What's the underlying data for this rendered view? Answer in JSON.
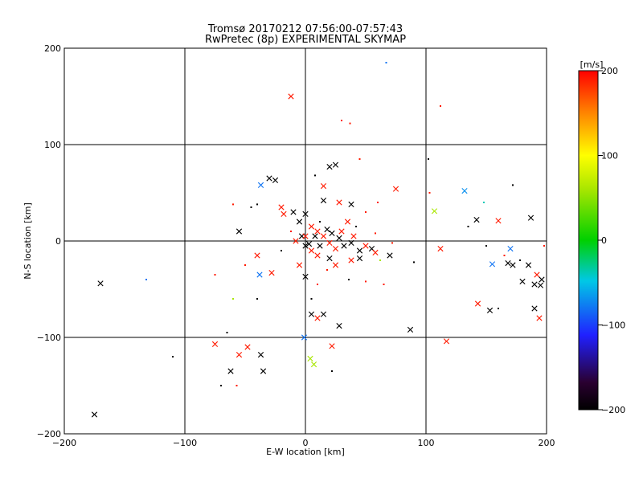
{
  "chart_data": {
    "type": "scatter",
    "title": "Tromsø 20170212 07:56:00-07:57:43",
    "subtitle": "RwPretec (8p) EXPERIMENTAL SKYMAP",
    "xlabel": "E-W location [km]",
    "ylabel": "N-S location [km]",
    "xlim": [
      -200,
      200
    ],
    "ylim": [
      -200,
      200
    ],
    "xticks": [
      -200,
      -100,
      0,
      100,
      200
    ],
    "yticks": [
      -200,
      -100,
      0,
      100,
      200
    ],
    "grid": true,
    "colorbar": {
      "label": "[m/s]",
      "range": [
        -200,
        200
      ],
      "ticks": [
        200,
        100,
        0,
        -100,
        -200
      ]
    },
    "series": [
      {
        "name": "large-markers",
        "marker": "x",
        "points": [
          {
            "x": -12,
            "y": 150,
            "v": 190
          },
          {
            "x": -30,
            "y": 65,
            "v": -200
          },
          {
            "x": -25,
            "y": 63,
            "v": -200
          },
          {
            "x": -37,
            "y": 58,
            "v": -80
          },
          {
            "x": 20,
            "y": 77,
            "v": -200
          },
          {
            "x": 25,
            "y": 79,
            "v": -200
          },
          {
            "x": 15,
            "y": 57,
            "v": 190
          },
          {
            "x": 75,
            "y": 54,
            "v": 190
          },
          {
            "x": 132,
            "y": 52,
            "v": -70
          },
          {
            "x": 107,
            "y": 31,
            "v": 60
          },
          {
            "x": -55,
            "y": 10,
            "v": -200
          },
          {
            "x": -20,
            "y": 35,
            "v": 190
          },
          {
            "x": -18,
            "y": 28,
            "v": 190
          },
          {
            "x": -10,
            "y": 30,
            "v": -200
          },
          {
            "x": -5,
            "y": 20,
            "v": -200
          },
          {
            "x": 0,
            "y": 28,
            "v": -200
          },
          {
            "x": 5,
            "y": 15,
            "v": 190
          },
          {
            "x": 8,
            "y": 5,
            "v": -200
          },
          {
            "x": 10,
            "y": 10,
            "v": 190
          },
          {
            "x": 12,
            "y": -5,
            "v": -200
          },
          {
            "x": 15,
            "y": 5,
            "v": 190
          },
          {
            "x": 18,
            "y": 12,
            "v": -200
          },
          {
            "x": 20,
            "y": -2,
            "v": 190
          },
          {
            "x": 22,
            "y": 8,
            "v": -200
          },
          {
            "x": 25,
            "y": -8,
            "v": 190
          },
          {
            "x": 28,
            "y": 3,
            "v": -200
          },
          {
            "x": 30,
            "y": 10,
            "v": 190
          },
          {
            "x": 32,
            "y": -5,
            "v": -200
          },
          {
            "x": 35,
            "y": 20,
            "v": 190
          },
          {
            "x": 38,
            "y": -2,
            "v": -200
          },
          {
            "x": 40,
            "y": 5,
            "v": 190
          },
          {
            "x": 45,
            "y": -10,
            "v": -200
          },
          {
            "x": 50,
            "y": -5,
            "v": 190
          },
          {
            "x": 55,
            "y": -8,
            "v": -200
          },
          {
            "x": 15,
            "y": 42,
            "v": -200
          },
          {
            "x": 28,
            "y": 40,
            "v": 190
          },
          {
            "x": 38,
            "y": 38,
            "v": -200
          },
          {
            "x": 5,
            "y": -10,
            "v": 190
          },
          {
            "x": 0,
            "y": -5,
            "v": -200
          },
          {
            "x": -5,
            "y": -25,
            "v": 190
          },
          {
            "x": -3,
            "y": 5,
            "v": -200
          },
          {
            "x": -8,
            "y": 0,
            "v": 190
          },
          {
            "x": 0,
            "y": 5,
            "v": 190
          },
          {
            "x": 3,
            "y": -3,
            "v": -200
          },
          {
            "x": 10,
            "y": -15,
            "v": 190
          },
          {
            "x": 20,
            "y": -18,
            "v": -200
          },
          {
            "x": 25,
            "y": -25,
            "v": 190
          },
          {
            "x": 38,
            "y": -20,
            "v": 190
          },
          {
            "x": 45,
            "y": -18,
            "v": -200
          },
          {
            "x": 58,
            "y": -12,
            "v": 190
          },
          {
            "x": 70,
            "y": -15,
            "v": -200
          },
          {
            "x": -40,
            "y": -15,
            "v": 190
          },
          {
            "x": -38,
            "y": -35,
            "v": -80
          },
          {
            "x": -28,
            "y": -33,
            "v": 190
          },
          {
            "x": 0,
            "y": -37,
            "v": -200
          },
          {
            "x": -170,
            "y": -44,
            "v": -200
          },
          {
            "x": 112,
            "y": -8,
            "v": 190
          },
          {
            "x": 142,
            "y": 22,
            "v": -200
          },
          {
            "x": 160,
            "y": 21,
            "v": 190
          },
          {
            "x": 187,
            "y": 24,
            "v": -200
          },
          {
            "x": 155,
            "y": -24,
            "v": -80
          },
          {
            "x": 170,
            "y": -8,
            "v": -80
          },
          {
            "x": 168,
            "y": -23,
            "v": -200
          },
          {
            "x": 172,
            "y": -25,
            "v": -200
          },
          {
            "x": 180,
            "y": -42,
            "v": -200
          },
          {
            "x": 185,
            "y": -25,
            "v": -200
          },
          {
            "x": 192,
            "y": -35,
            "v": 190
          },
          {
            "x": 196,
            "y": -40,
            "v": -200
          },
          {
            "x": 195,
            "y": -46,
            "v": -200
          },
          {
            "x": 190,
            "y": -45,
            "v": -200
          },
          {
            "x": 143,
            "y": -65,
            "v": 190
          },
          {
            "x": 153,
            "y": -72,
            "v": -200
          },
          {
            "x": 190,
            "y": -70,
            "v": -200
          },
          {
            "x": 194,
            "y": -80,
            "v": 190
          },
          {
            "x": 87,
            "y": -92,
            "v": -200
          },
          {
            "x": 117,
            "y": -104,
            "v": 190
          },
          {
            "x": 28,
            "y": -88,
            "v": -200
          },
          {
            "x": 15,
            "y": -76,
            "v": -200
          },
          {
            "x": 10,
            "y": -80,
            "v": 190
          },
          {
            "x": 5,
            "y": -76,
            "v": -200
          },
          {
            "x": -1,
            "y": -100,
            "v": -80
          },
          {
            "x": 4,
            "y": -122,
            "v": 60
          },
          {
            "x": 7,
            "y": -128,
            "v": 60
          },
          {
            "x": 22,
            "y": -109,
            "v": 190
          },
          {
            "x": -75,
            "y": -107,
            "v": 190
          },
          {
            "x": -48,
            "y": -110,
            "v": 190
          },
          {
            "x": -55,
            "y": -118,
            "v": 190
          },
          {
            "x": -37,
            "y": -118,
            "v": -200
          },
          {
            "x": -35,
            "y": -135,
            "v": -200
          },
          {
            "x": -62,
            "y": -135,
            "v": -200
          },
          {
            "x": -175,
            "y": -180,
            "v": -200
          }
        ]
      },
      {
        "name": "small-markers",
        "marker": "dot",
        "points": [
          {
            "x": 67,
            "y": 185,
            "v": -80
          },
          {
            "x": 112,
            "y": 140,
            "v": 190
          },
          {
            "x": 30,
            "y": 125,
            "v": 190
          },
          {
            "x": 37,
            "y": 122,
            "v": 190
          },
          {
            "x": 102,
            "y": 85,
            "v": -200
          },
          {
            "x": 45,
            "y": 85,
            "v": 190
          },
          {
            "x": 8,
            "y": 68,
            "v": -200
          },
          {
            "x": 103,
            "y": 50,
            "v": 190
          },
          {
            "x": 148,
            "y": 40,
            "v": -40
          },
          {
            "x": 172,
            "y": 58,
            "v": -200
          },
          {
            "x": -60,
            "y": 38,
            "v": 190
          },
          {
            "x": -45,
            "y": 35,
            "v": -200
          },
          {
            "x": -40,
            "y": 38,
            "v": -200
          },
          {
            "x": 60,
            "y": 40,
            "v": 190
          },
          {
            "x": 58,
            "y": 8,
            "v": 190
          },
          {
            "x": 72,
            "y": -2,
            "v": 190
          },
          {
            "x": -50,
            "y": -25,
            "v": 190
          },
          {
            "x": -75,
            "y": -35,
            "v": 190
          },
          {
            "x": -132,
            "y": -40,
            "v": -80
          },
          {
            "x": -60,
            "y": -60,
            "v": 60
          },
          {
            "x": -40,
            "y": -60,
            "v": -200
          },
          {
            "x": 5,
            "y": -60,
            "v": -200
          },
          {
            "x": 50,
            "y": -42,
            "v": 190
          },
          {
            "x": 65,
            "y": -45,
            "v": 190
          },
          {
            "x": 90,
            "y": -22,
            "v": -200
          },
          {
            "x": 135,
            "y": 15,
            "v": -200
          },
          {
            "x": 150,
            "y": -5,
            "v": -200
          },
          {
            "x": 165,
            "y": -15,
            "v": 190
          },
          {
            "x": 178,
            "y": -20,
            "v": -200
          },
          {
            "x": 198,
            "y": -5,
            "v": 190
          },
          {
            "x": 160,
            "y": -70,
            "v": -200
          },
          {
            "x": -65,
            "y": -95,
            "v": -200
          },
          {
            "x": -110,
            "y": -120,
            "v": -200
          },
          {
            "x": -70,
            "y": -150,
            "v": -200
          },
          {
            "x": -57,
            "y": -150,
            "v": 190
          },
          {
            "x": 22,
            "y": -135,
            "v": -200
          },
          {
            "x": 12,
            "y": 20,
            "v": -200
          },
          {
            "x": -12,
            "y": 10,
            "v": 190
          },
          {
            "x": 42,
            "y": 15,
            "v": -200
          },
          {
            "x": 50,
            "y": 30,
            "v": 190
          },
          {
            "x": 18,
            "y": -30,
            "v": 190
          },
          {
            "x": -20,
            "y": -10,
            "v": -200
          },
          {
            "x": 36,
            "y": -40,
            "v": -200
          },
          {
            "x": 62,
            "y": -20,
            "v": 60
          },
          {
            "x": 10,
            "y": -45,
            "v": 190
          }
        ]
      }
    ]
  }
}
